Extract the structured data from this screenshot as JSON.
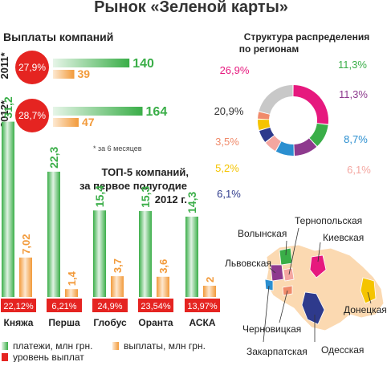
{
  "title": "Рынок «Зеленой карты»",
  "colors": {
    "green": "#3aae48",
    "green_light": "#a9dcae",
    "orange": "#f29a3a",
    "orange_light": "#fbd9b1",
    "red": "#e52421",
    "gray": "#bdbdbd"
  },
  "payments": {
    "title": "Выплаты компаний",
    "note": "* за 6 месяцев",
    "rows": [
      {
        "year": "2011*",
        "rate": "27,9%",
        "payments": 140,
        "payouts": 39
      },
      {
        "year": "2012*",
        "rate": "28,7%",
        "payments": 164,
        "payouts": 47
      }
    ]
  },
  "donut": {
    "title_line1": "Структура распределения",
    "title_line2": "по регионам",
    "segments": [
      {
        "label": "26,9%",
        "value": 26.9,
        "color": "#e6197e"
      },
      {
        "label": "11,3%",
        "value": 11.3,
        "color": "#3aae48"
      },
      {
        "label": "11,3%",
        "value": 11.3,
        "color": "#8e3a8e"
      },
      {
        "label": "8,7%",
        "value": 8.7,
        "color": "#2b8fd0"
      },
      {
        "label": "6,1%",
        "value": 6.1,
        "color": "#f4a6a0"
      },
      {
        "label": "6,1%",
        "value": 6.1,
        "color": "#2e3a8c"
      },
      {
        "label": "5,2%",
        "value": 5.2,
        "color": "#f5c400"
      },
      {
        "label": "3,5%",
        "value": 3.5,
        "color": "#f08a6a"
      },
      {
        "label": "20,9%",
        "value": 20.9,
        "color": "#c8c8c8"
      }
    ]
  },
  "top5": {
    "title_line1": "ТОП-5 компаний,",
    "title_line2": "за первое полугодие",
    "title_line3": "2012 г."
  },
  "chart_data": {
    "type": "bar",
    "title": "ТОП-5 компаний, за первое полугодие 2012 г.",
    "categories": [
      "Княжа",
      "Перша",
      "Глобус",
      "Оранта",
      "АСКА"
    ],
    "series": [
      {
        "name": "платежи, млн грн.",
        "values": [
          31.2,
          22.3,
          15.4,
          15.3,
          14.3
        ],
        "labels": [
          "31,2",
          "22,3",
          "15,4",
          "15,3",
          "14,3"
        ]
      },
      {
        "name": "выплаты, млн грн.",
        "values": [
          7.02,
          1.4,
          3.7,
          3.6,
          2
        ],
        "labels": [
          "7,02",
          "1,4",
          "3,7",
          "3,6",
          "2"
        ]
      },
      {
        "name": "уровень выплат",
        "values": [
          22.12,
          6.21,
          24.9,
          23.54,
          13.97
        ],
        "labels": [
          "22,12%",
          "6,21%",
          "24,9%",
          "23,54%",
          "13,97%"
        ]
      }
    ],
    "legend": [
      "платежи, млн грн.",
      "выплаты, млн грн.",
      "уровень выплат"
    ]
  },
  "map": {
    "labels": {
      "ternopil": "Тернопольская",
      "volyn": "Волынская",
      "kyiv": "Киевская",
      "lviv": "Львовская",
      "donetsk": "Донецкая",
      "chernivtsi": "Черновицкая",
      "zakarpattia": "Закарпатская",
      "odesa": "Одесская"
    }
  }
}
